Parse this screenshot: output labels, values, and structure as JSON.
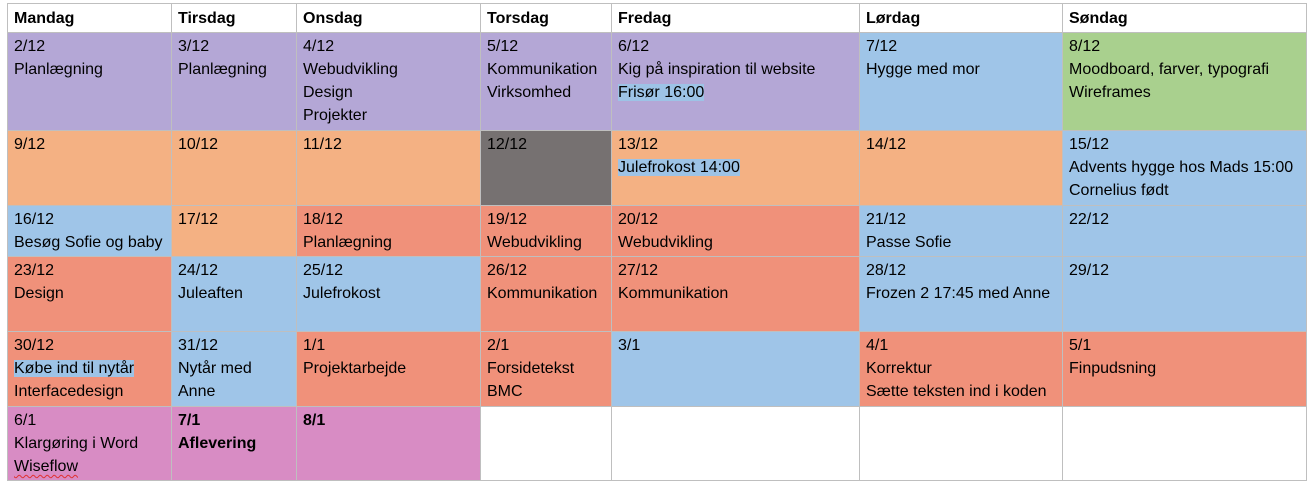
{
  "headers": [
    "Mandag",
    "Tirsdag",
    "Onsdag",
    "Torsdag",
    "Fredag",
    "Lørdag",
    "Søndag"
  ],
  "colors": {
    "purple": "#b4a7d6",
    "blue": "#9fc5e8",
    "green": "#a9d08e",
    "peach": "#f4b183",
    "salmon": "#f0917a",
    "gray": "#767171",
    "pink": "#d88cc4",
    "white": "#ffffff",
    "highlight": "#9dc3e6"
  },
  "weeks": [
    {
      "height": 98,
      "cells": [
        {
          "color": "purple",
          "lines": [
            "2/12",
            "Planlægning"
          ]
        },
        {
          "color": "purple",
          "lines": [
            "3/12",
            "Planlægning"
          ]
        },
        {
          "color": "purple",
          "lines": [
            "4/12",
            "Webudvikling",
            "Design",
            "Projekter"
          ]
        },
        {
          "color": "purple",
          "lines": [
            "5/12",
            "Kommunikation",
            "Virksomhed"
          ]
        },
        {
          "color": "purple",
          "lines": [
            "6/12",
            "Kig på inspiration til website",
            "Frisør 16:00"
          ],
          "highlight": [
            2
          ]
        },
        {
          "color": "blue",
          "lines": [
            "7/12",
            "Hygge med mor"
          ]
        },
        {
          "color": "green",
          "lines": [
            "8/12",
            "Moodboard, farver, typografi",
            "Wireframes"
          ]
        }
      ]
    },
    {
      "height": 75,
      "cells": [
        {
          "color": "peach",
          "lines": [
            "9/12"
          ]
        },
        {
          "color": "peach",
          "lines": [
            "10/12"
          ]
        },
        {
          "color": "peach",
          "lines": [
            "11/12"
          ]
        },
        {
          "color": "gray",
          "lines": [
            "12/12"
          ]
        },
        {
          "color": "peach",
          "lines": [
            "13/12",
            "Julefrokost 14:00"
          ],
          "highlight": [
            1
          ]
        },
        {
          "color": "peach",
          "lines": [
            "14/12"
          ]
        },
        {
          "color": "blue",
          "lines": [
            "15/12",
            "Advents hygge hos Mads 15:00",
            "Cornelius født"
          ]
        }
      ]
    },
    {
      "height": 51,
      "cells": [
        {
          "color": "blue",
          "lines": [
            "16/12",
            "Besøg Sofie og baby"
          ]
        },
        {
          "color": "peach",
          "lines": [
            "17/12"
          ]
        },
        {
          "color": "salmon",
          "lines": [
            "18/12",
            "Planlægning"
          ]
        },
        {
          "color": "salmon",
          "lines": [
            "19/12",
            "Webudvikling"
          ]
        },
        {
          "color": "salmon",
          "lines": [
            "20/12",
            "Webudvikling"
          ]
        },
        {
          "color": "blue",
          "lines": [
            "21/12",
            "Passe Sofie"
          ]
        },
        {
          "color": "blue",
          "lines": [
            "22/12"
          ]
        }
      ]
    },
    {
      "height": 75,
      "cells": [
        {
          "color": "salmon",
          "lines": [
            "23/12",
            "Design"
          ]
        },
        {
          "color": "blue",
          "lines": [
            "24/12",
            "Juleaften"
          ]
        },
        {
          "color": "blue",
          "lines": [
            "25/12",
            "Julefrokost"
          ]
        },
        {
          "color": "salmon",
          "lines": [
            "26/12",
            "Kommunikation"
          ]
        },
        {
          "color": "salmon",
          "lines": [
            "27/12",
            "Kommunikation"
          ]
        },
        {
          "color": "blue",
          "lines": [
            "28/12",
            "Frozen 2 17:45 med Anne"
          ]
        },
        {
          "color": "blue",
          "lines": [
            "29/12"
          ]
        }
      ]
    },
    {
      "height": 75,
      "cells": [
        {
          "color": "salmon",
          "lines": [
            "30/12",
            "Købe ind til nytår",
            "Interfacedesign"
          ],
          "highlight": [
            1
          ]
        },
        {
          "color": "blue",
          "lines": [
            "31/12",
            "Nytår med",
            "Anne"
          ]
        },
        {
          "color": "salmon",
          "lines": [
            "1/1",
            "Projektarbejde"
          ]
        },
        {
          "color": "salmon",
          "lines": [
            "2/1",
            "Forsidetekst",
            "BMC"
          ]
        },
        {
          "color": "blue",
          "lines": [
            "3/1"
          ]
        },
        {
          "color": "salmon",
          "lines": [
            "4/1",
            "Korrektur",
            "Sætte teksten ind i koden"
          ]
        },
        {
          "color": "salmon",
          "lines": [
            "5/1",
            "Finpudsning"
          ]
        }
      ]
    },
    {
      "height": 74,
      "cells": [
        {
          "color": "pink",
          "lines": [
            "6/1",
            "Klargøring i Word",
            "Wiseflow"
          ],
          "squiggle": [
            2
          ]
        },
        {
          "color": "pink",
          "lines": [
            "7/1",
            "Aflevering"
          ],
          "bold": true
        },
        {
          "color": "pink",
          "lines": [
            "8/1"
          ],
          "bold": true
        },
        {
          "color": "white",
          "lines": []
        },
        {
          "color": "white",
          "lines": []
        },
        {
          "color": "white",
          "lines": []
        },
        {
          "color": "white",
          "lines": []
        }
      ]
    }
  ]
}
